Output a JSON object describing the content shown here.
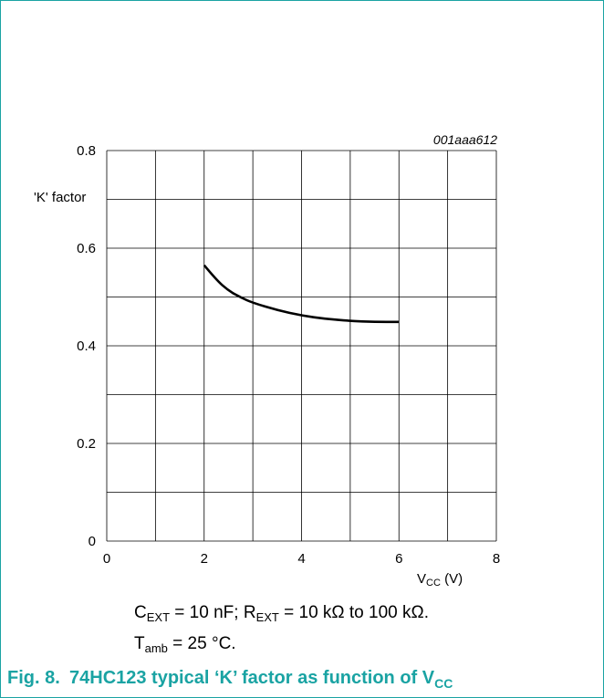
{
  "chart_data": {
    "type": "line",
    "figure_id": "001aaa612",
    "ylabel": "'K' factor",
    "xlabel_main": "V",
    "xlabel_sub": "CC",
    "xlabel_unit": " (V)",
    "xlim": [
      0,
      8
    ],
    "ylim": [
      0,
      0.8
    ],
    "x_ticks": [
      0,
      2,
      4,
      6,
      8
    ],
    "x_tick_labels": [
      "0",
      "2",
      "4",
      "6",
      "8"
    ],
    "y_ticks": [
      0,
      0.2,
      0.4,
      0.6,
      0.8
    ],
    "y_tick_labels": [
      "0",
      "0.2",
      "0.4",
      "0.6",
      "0.8"
    ],
    "grid": true,
    "series": [
      {
        "x": [
          2.0,
          2.25,
          2.5,
          2.75,
          3.0,
          3.5,
          4.0,
          4.5,
          5.0,
          5.5,
          6.0
        ],
        "y": [
          0.565,
          0.535,
          0.513,
          0.499,
          0.488,
          0.473,
          0.462,
          0.455,
          0.451,
          0.449,
          0.449
        ]
      }
    ]
  },
  "notes": {
    "line1": {
      "c_main": "C",
      "c_sub": "EXT",
      "c_rest": " = 10 nF; ",
      "r_main": "R",
      "r_sub": "EXT",
      "r_rest": " = 10 kΩ to 100 kΩ."
    },
    "line2": {
      "t_main": "T",
      "t_sub": "amb",
      "t_rest": " = 25 °C."
    }
  },
  "caption": {
    "number": "Fig. 8.",
    "text": "74HC123 typical ‘K’ factor as function of V",
    "sub": "CC"
  },
  "colors": {
    "accent": "#1aa3a3",
    "line": "#000000",
    "grid": "#000000"
  }
}
